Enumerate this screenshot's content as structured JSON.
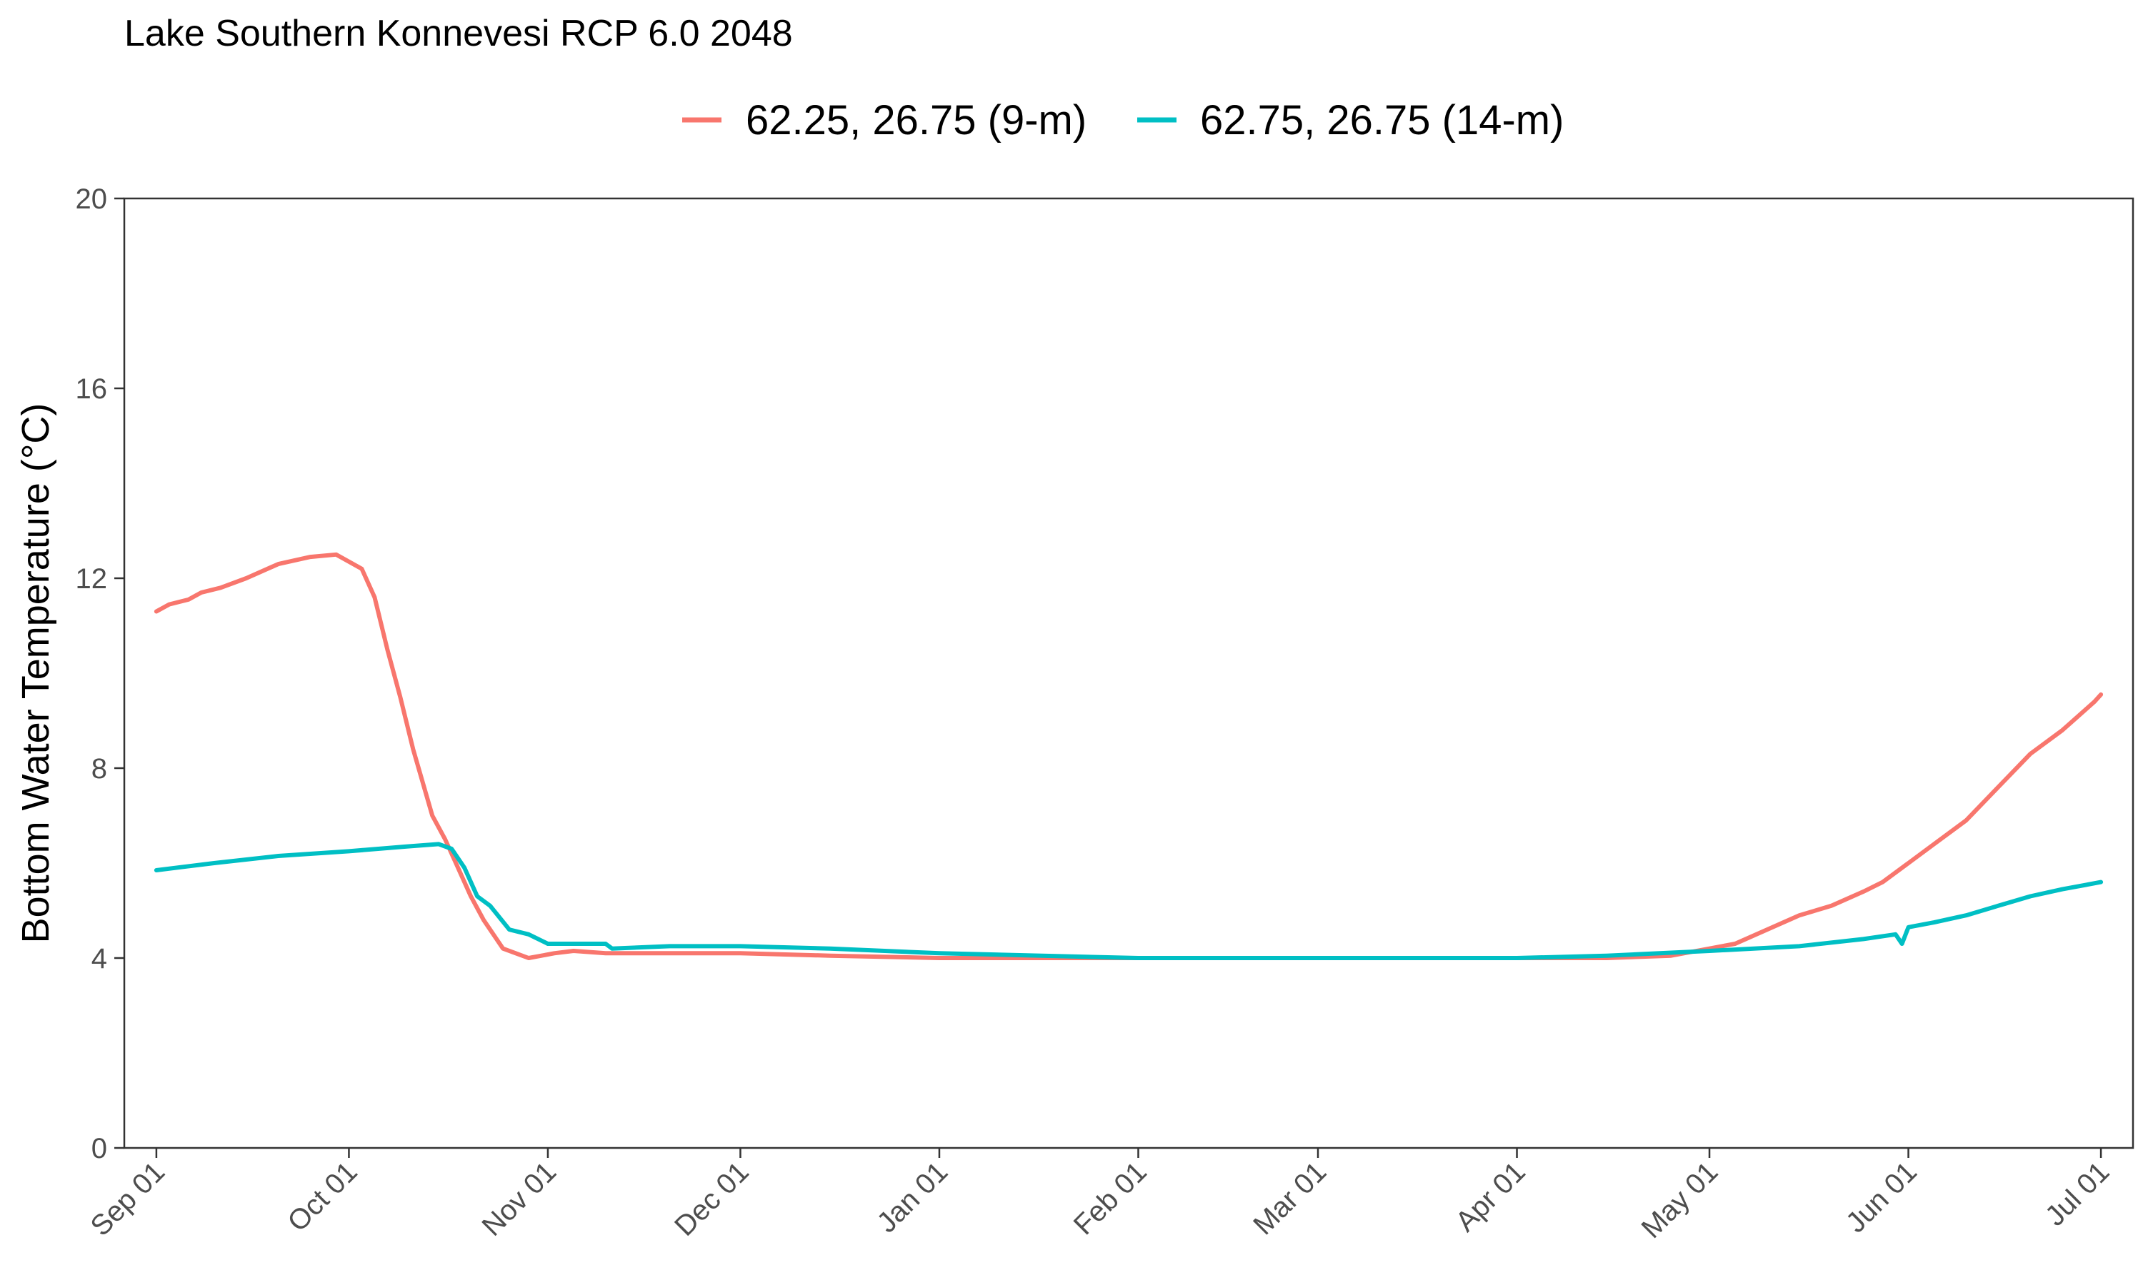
{
  "chart_data": {
    "type": "line",
    "title": "Lake Southern Konnevesi RCP 6.0 2048",
    "xlabel": "",
    "ylabel": "Bottom Water Temperature (°C)",
    "ylim": [
      0,
      20
    ],
    "yticks": [
      0,
      4,
      8,
      12,
      16,
      20
    ],
    "xlim": [
      "2048-08-27",
      "2049-07-06"
    ],
    "xticks": [
      {
        "date": "2048-09-01",
        "label": "Sep 01"
      },
      {
        "date": "2048-10-01",
        "label": "Oct 01"
      },
      {
        "date": "2048-11-01",
        "label": "Nov 01"
      },
      {
        "date": "2048-12-01",
        "label": "Dec 01"
      },
      {
        "date": "2049-01-01",
        "label": "Jan 01"
      },
      {
        "date": "2049-02-01",
        "label": "Feb 01"
      },
      {
        "date": "2049-03-01",
        "label": "Mar 01"
      },
      {
        "date": "2049-04-01",
        "label": "Apr 01"
      },
      {
        "date": "2049-05-01",
        "label": "May 01"
      },
      {
        "date": "2049-06-01",
        "label": "Jun 01"
      },
      {
        "date": "2049-07-01",
        "label": "Jul 01"
      }
    ],
    "grid": false,
    "legend_position": "top",
    "series": [
      {
        "name": "62.25, 26.75 (9-m)",
        "color": "#F8766D",
        "x": [
          "2048-09-01",
          "2048-09-03",
          "2048-09-06",
          "2048-09-08",
          "2048-09-11",
          "2048-09-15",
          "2048-09-20",
          "2048-09-25",
          "2048-09-29",
          "2048-10-03",
          "2048-10-05",
          "2048-10-07",
          "2048-10-09",
          "2048-10-11",
          "2048-10-14",
          "2048-10-16",
          "2048-10-18",
          "2048-10-20",
          "2048-10-22",
          "2048-10-25",
          "2048-10-27",
          "2048-10-29",
          "2048-10-31",
          "2048-11-02",
          "2048-11-05",
          "2048-11-10",
          "2048-11-15",
          "2048-11-20",
          "2048-12-01",
          "2048-12-15",
          "2049-01-01",
          "2049-01-15",
          "2049-02-01",
          "2049-03-01",
          "2049-04-01",
          "2049-04-15",
          "2049-04-25",
          "2049-05-01",
          "2049-05-05",
          "2049-05-10",
          "2049-05-15",
          "2049-05-20",
          "2049-05-25",
          "2049-05-28",
          "2049-06-01",
          "2049-06-05",
          "2049-06-10",
          "2049-06-15",
          "2049-06-20",
          "2049-06-25",
          "2049-06-30",
          "2049-07-01"
        ],
        "y": [
          11.3,
          11.45,
          11.55,
          11.7,
          11.8,
          12.0,
          12.3,
          12.45,
          12.5,
          12.2,
          11.6,
          10.5,
          9.5,
          8.4,
          7.0,
          6.5,
          5.9,
          5.3,
          4.8,
          4.2,
          4.1,
          4.0,
          4.05,
          4.1,
          4.15,
          4.1,
          4.1,
          4.1,
          4.1,
          4.05,
          4.0,
          4.0,
          4.0,
          4.0,
          4.0,
          4.0,
          4.05,
          4.2,
          4.3,
          4.6,
          4.9,
          5.1,
          5.4,
          5.6,
          6.0,
          6.4,
          6.9,
          7.6,
          8.3,
          8.8,
          9.4,
          9.55
        ]
      },
      {
        "name": "62.75, 26.75 (14-m)",
        "color": "#00BFC4",
        "x": [
          "2048-09-01",
          "2048-09-10",
          "2048-09-20",
          "2048-10-01",
          "2048-10-10",
          "2048-10-15",
          "2048-10-17",
          "2048-10-19",
          "2048-10-21",
          "2048-10-23",
          "2048-10-26",
          "2048-10-29",
          "2048-11-01",
          "2048-11-03",
          "2048-11-10",
          "2048-11-11",
          "2048-11-20",
          "2048-12-01",
          "2048-12-15",
          "2049-01-01",
          "2049-02-01",
          "2049-03-01",
          "2049-04-01",
          "2049-04-15",
          "2049-05-01",
          "2049-05-15",
          "2049-05-25",
          "2049-05-30",
          "2049-05-31",
          "2049-06-01",
          "2049-06-05",
          "2049-06-10",
          "2049-06-15",
          "2049-06-20",
          "2049-06-25",
          "2049-07-01"
        ],
        "y": [
          5.85,
          6.0,
          6.15,
          6.25,
          6.35,
          6.4,
          6.3,
          5.9,
          5.3,
          5.1,
          4.6,
          4.5,
          4.3,
          4.3,
          4.3,
          4.2,
          4.25,
          4.25,
          4.2,
          4.1,
          4.0,
          4.0,
          4.0,
          4.05,
          4.15,
          4.25,
          4.4,
          4.5,
          4.3,
          4.65,
          4.75,
          4.9,
          5.1,
          5.3,
          5.45,
          5.6
        ]
      }
    ]
  }
}
